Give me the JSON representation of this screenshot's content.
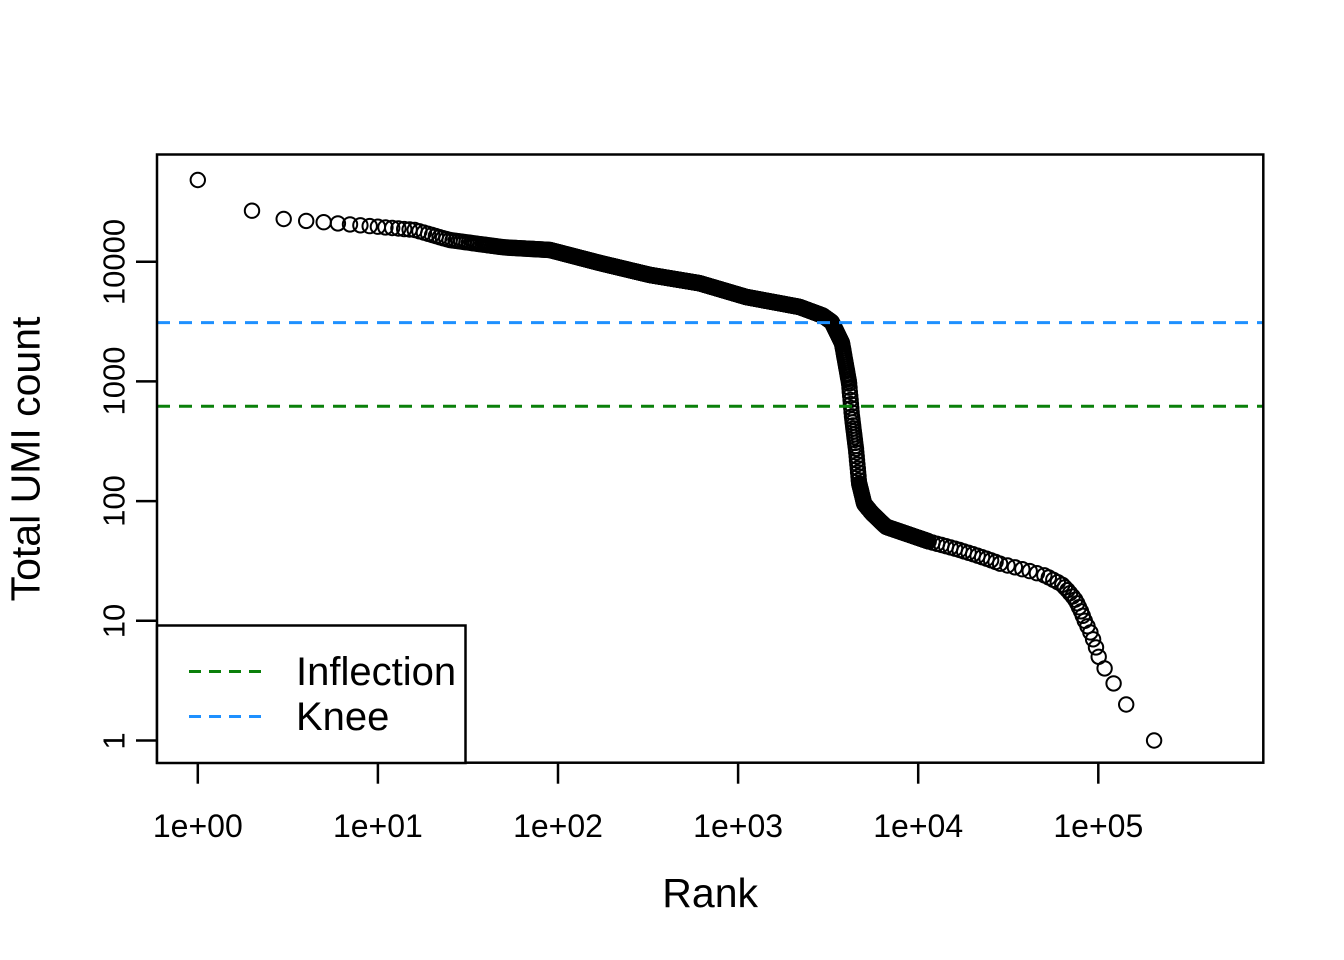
{
  "axes": {
    "xlabel": "Rank",
    "ylabel": "Total UMI count",
    "x_ticks": [
      "1e+00",
      "1e+01",
      "1e+02",
      "1e+03",
      "1e+04",
      "1e+05"
    ],
    "y_ticks": [
      "1",
      "10",
      "100",
      "1000",
      "10000"
    ]
  },
  "legend": {
    "items": [
      {
        "label": "Inflection",
        "color": "#0a800a",
        "line_style": "dashed"
      },
      {
        "label": "Knee",
        "color": "#1e90ff",
        "line_style": "dashed"
      }
    ]
  },
  "chart_data": {
    "type": "scatter",
    "title": "",
    "xlabel": "Rank",
    "ylabel": "Total UMI count",
    "x_scale": "log10",
    "y_scale": "log10",
    "xlim": [
      0.6,
      800000
    ],
    "ylim": [
      0.66,
      78000
    ],
    "x_tick_values": [
      1,
      10,
      100,
      1000,
      10000,
      100000
    ],
    "y_tick_values": [
      1,
      10,
      100,
      1000,
      10000
    ],
    "grid": false,
    "marker": "open-circle",
    "marker_color": "#000000",
    "legend_position": "bottomleft",
    "knee": 3100,
    "inflection": 620,
    "hlines": [
      {
        "name": "Knee",
        "value": 3100,
        "color": "#1e90ff",
        "style": "dashed"
      },
      {
        "name": "Inflection",
        "value": 620,
        "color": "#0a800a",
        "style": "dashed"
      }
    ],
    "curve_anchor_points": [
      [
        1,
        48100
      ],
      [
        2,
        26670
      ],
      [
        3,
        22750
      ],
      [
        4,
        21930
      ],
      [
        5,
        21380
      ],
      [
        10,
        19590
      ],
      [
        16,
        18410
      ],
      [
        25,
        15170
      ],
      [
        50,
        13180
      ],
      [
        90,
        12530
      ],
      [
        170,
        9770
      ],
      [
        324,
        7745
      ],
      [
        610,
        6610
      ],
      [
        1109,
        5070
      ],
      [
        2188,
        4190
      ],
      [
        2951,
        3548
      ],
      [
        3311,
        3133
      ],
      [
        3776,
        2089
      ],
      [
        4130,
        977
      ],
      [
        4295,
        501
      ],
      [
        4519,
        269
      ],
      [
        4699,
        141
      ],
      [
        5012,
        95
      ],
      [
        5546,
        79
      ],
      [
        6637,
        61
      ],
      [
        11480,
        46
      ]
    ],
    "tail_points": [
      [
        12023,
        45
      ],
      [
        12735,
        44
      ],
      [
        13490,
        43
      ],
      [
        14289,
        42
      ],
      [
        15136,
        41
      ],
      [
        16032,
        40
      ],
      [
        16982,
        39
      ],
      [
        17989,
        38
      ],
      [
        19055,
        37
      ],
      [
        20184,
        36
      ],
      [
        21380,
        35
      ],
      [
        22646,
        34
      ],
      [
        23988,
        33
      ],
      [
        25410,
        32
      ],
      [
        26915,
        31
      ],
      [
        28510,
        30
      ],
      [
        31333,
        29
      ],
      [
        34435,
        28
      ],
      [
        37844,
        27
      ],
      [
        41591,
        26
      ],
      [
        45604,
        25
      ],
      [
        50119,
        24
      ],
      [
        53088,
        23
      ],
      [
        56234,
        22
      ],
      [
        59566,
        21
      ],
      [
        63096,
        20
      ],
      [
        65163,
        19
      ],
      [
        67453,
        18
      ],
      [
        69663,
        17
      ],
      [
        72111,
        16
      ],
      [
        74473,
        15
      ],
      [
        76384,
        14
      ],
      [
        78163,
        13
      ],
      [
        80168,
        12
      ],
      [
        82035,
        11
      ],
      [
        84140,
        10
      ],
      [
        87096,
        9
      ],
      [
        90365,
        8
      ],
      [
        93541,
        7
      ],
      [
        97051,
        6
      ],
      [
        100462,
        5
      ],
      [
        108393,
        4
      ],
      [
        121619,
        3
      ],
      [
        142889,
        2
      ],
      [
        204174,
        1
      ]
    ]
  }
}
